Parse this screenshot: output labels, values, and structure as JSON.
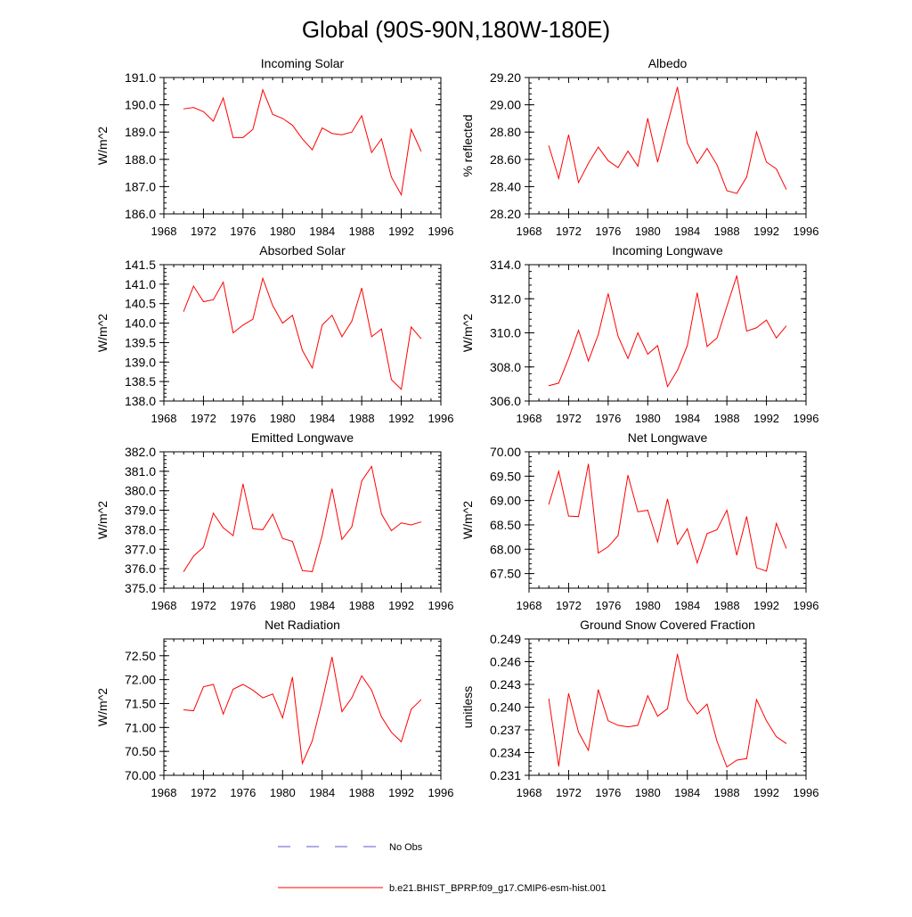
{
  "title": "Global (90S-90N,180W-180E)",
  "chart_data": [
    {
      "type": "line",
      "title": "Incoming Solar",
      "ylabel": "W/m^2",
      "xlim": [
        1968,
        1996
      ],
      "ylim": [
        186.0,
        191.0
      ],
      "xticks": [
        1968,
        1972,
        1976,
        1980,
        1984,
        1988,
        1992,
        1996
      ],
      "yticks": [
        "186.0",
        "187.0",
        "188.0",
        "189.0",
        "190.0",
        "191.0"
      ],
      "x": [
        1970,
        1971,
        1972,
        1973,
        1974,
        1975,
        1976,
        1977,
        1978,
        1979,
        1980,
        1981,
        1982,
        1983,
        1984,
        1985,
        1986,
        1987,
        1988,
        1989,
        1990,
        1991,
        1992,
        1993,
        1994
      ],
      "series": [
        {
          "name": "b.e21.BHIST_BPRP.f09_g17.CMIP6-esm-hist.001",
          "color": "#ff0000",
          "values": [
            189.85,
            189.9,
            189.75,
            189.4,
            190.25,
            188.8,
            188.8,
            189.1,
            190.55,
            189.65,
            189.5,
            189.25,
            188.75,
            188.35,
            189.15,
            188.95,
            188.9,
            189.0,
            189.6,
            188.25,
            188.75,
            187.35,
            186.7,
            189.1,
            188.3
          ]
        }
      ]
    },
    {
      "type": "line",
      "title": "Albedo",
      "ylabel": "% reflected",
      "xlim": [
        1968,
        1996
      ],
      "ylim": [
        28.2,
        29.2
      ],
      "xticks": [
        1968,
        1972,
        1976,
        1980,
        1984,
        1988,
        1992,
        1996
      ],
      "yticks": [
        "28.20",
        "28.40",
        "28.60",
        "28.80",
        "29.00",
        "29.20"
      ],
      "x": [
        1970,
        1971,
        1972,
        1973,
        1974,
        1975,
        1976,
        1977,
        1978,
        1979,
        1980,
        1981,
        1982,
        1983,
        1984,
        1985,
        1986,
        1987,
        1988,
        1989,
        1990,
        1991,
        1992,
        1993,
        1994
      ],
      "series": [
        {
          "name": "b.e21.BHIST_BPRP.f09_g17.CMIP6-esm-hist.001",
          "color": "#ff0000",
          "values": [
            28.7,
            28.46,
            28.78,
            28.43,
            28.57,
            28.69,
            28.59,
            28.54,
            28.66,
            28.55,
            28.9,
            28.58,
            28.86,
            29.13,
            28.72,
            28.57,
            28.68,
            28.56,
            28.37,
            28.35,
            28.47,
            28.8,
            28.58,
            28.53,
            28.38
          ]
        }
      ]
    },
    {
      "type": "line",
      "title": "Absorbed Solar",
      "ylabel": "W/m^2",
      "xlim": [
        1968,
        1996
      ],
      "ylim": [
        138.0,
        141.5
      ],
      "xticks": [
        1968,
        1972,
        1976,
        1980,
        1984,
        1988,
        1992,
        1996
      ],
      "yticks": [
        "138.0",
        "138.5",
        "139.0",
        "139.5",
        "140.0",
        "140.5",
        "141.0",
        "141.5"
      ],
      "x": [
        1970,
        1971,
        1972,
        1973,
        1974,
        1975,
        1976,
        1977,
        1978,
        1979,
        1980,
        1981,
        1982,
        1983,
        1984,
        1985,
        1986,
        1987,
        1988,
        1989,
        1990,
        1991,
        1992,
        1993,
        1994
      ],
      "series": [
        {
          "name": "b.e21.BHIST_BPRP.f09_g17.CMIP6-esm-hist.001",
          "color": "#ff0000",
          "values": [
            140.3,
            140.95,
            140.55,
            140.6,
            141.05,
            139.75,
            139.95,
            140.1,
            141.15,
            140.45,
            140.0,
            140.2,
            139.3,
            138.85,
            139.95,
            140.2,
            139.65,
            140.05,
            140.9,
            139.65,
            139.85,
            138.55,
            138.3,
            139.9,
            139.6
          ]
        }
      ]
    },
    {
      "type": "line",
      "title": "Incoming Longwave",
      "ylabel": "W/m^2",
      "xlim": [
        1968,
        1996
      ],
      "ylim": [
        306.0,
        314.0
      ],
      "xticks": [
        1968,
        1972,
        1976,
        1980,
        1984,
        1988,
        1992,
        1996
      ],
      "yticks": [
        "306.0",
        "308.0",
        "310.0",
        "312.0",
        "314.0"
      ],
      "x": [
        1970,
        1971,
        1972,
        1973,
        1974,
        1975,
        1976,
        1977,
        1978,
        1979,
        1980,
        1981,
        1982,
        1983,
        1984,
        1985,
        1986,
        1987,
        1988,
        1989,
        1990,
        1991,
        1992,
        1993,
        1994
      ],
      "series": [
        {
          "name": "b.e21.BHIST_BPRP.f09_g17.CMIP6-esm-hist.001",
          "color": "#ff0000",
          "values": [
            306.9,
            307.05,
            308.5,
            310.15,
            308.35,
            309.9,
            312.3,
            309.8,
            308.5,
            310.0,
            308.75,
            309.25,
            306.85,
            307.8,
            309.25,
            312.35,
            309.2,
            309.7,
            311.55,
            313.35,
            310.1,
            310.3,
            310.75,
            309.7,
            310.4
          ]
        }
      ]
    },
    {
      "type": "line",
      "title": "Emitted Longwave",
      "ylabel": "W/m^2",
      "xlim": [
        1968,
        1996
      ],
      "ylim": [
        375.0,
        382.0
      ],
      "xticks": [
        1968,
        1972,
        1976,
        1980,
        1984,
        1988,
        1992,
        1996
      ],
      "yticks": [
        "375.0",
        "376.0",
        "377.0",
        "378.0",
        "379.0",
        "380.0",
        "381.0",
        "382.0"
      ],
      "x": [
        1970,
        1971,
        1972,
        1973,
        1974,
        1975,
        1976,
        1977,
        1978,
        1979,
        1980,
        1981,
        1982,
        1983,
        1984,
        1985,
        1986,
        1987,
        1988,
        1989,
        1990,
        1991,
        1992,
        1993,
        1994
      ],
      "series": [
        {
          "name": "b.e21.BHIST_BPRP.f09_g17.CMIP6-esm-hist.001",
          "color": "#ff0000",
          "values": [
            375.85,
            376.65,
            377.1,
            378.85,
            378.1,
            377.7,
            380.35,
            378.05,
            378.0,
            378.8,
            377.55,
            377.4,
            375.9,
            375.85,
            377.7,
            380.1,
            377.5,
            378.15,
            380.5,
            381.25,
            378.8,
            377.95,
            378.35,
            378.25,
            378.4
          ]
        }
      ]
    },
    {
      "type": "line",
      "title": "Net Longwave",
      "ylabel": "W/m^2",
      "xlim": [
        1968,
        1996
      ],
      "ylim": [
        67.2,
        70.0
      ],
      "xticks": [
        1968,
        1972,
        1976,
        1980,
        1984,
        1988,
        1992,
        1996
      ],
      "yticks": [
        "67.50",
        "68.00",
        "68.50",
        "69.00",
        "69.50",
        "70.00"
      ],
      "x": [
        1970,
        1971,
        1972,
        1973,
        1974,
        1975,
        1976,
        1977,
        1978,
        1979,
        1980,
        1981,
        1982,
        1983,
        1984,
        1985,
        1986,
        1987,
        1988,
        1989,
        1990,
        1991,
        1992,
        1993,
        1994
      ],
      "series": [
        {
          "name": "b.e21.BHIST_BPRP.f09_g17.CMIP6-esm-hist.001",
          "color": "#ff0000",
          "values": [
            68.92,
            69.6,
            68.68,
            68.67,
            69.75,
            67.92,
            68.05,
            68.28,
            69.52,
            68.77,
            68.8,
            68.15,
            69.03,
            68.1,
            68.42,
            67.72,
            68.32,
            68.4,
            68.8,
            67.88,
            68.67,
            67.62,
            67.55,
            68.53,
            68.02
          ]
        }
      ]
    },
    {
      "type": "line",
      "title": "Net Radiation",
      "ylabel": "W/m^2",
      "xlim": [
        1968,
        1996
      ],
      "ylim": [
        70.0,
        72.85
      ],
      "xticks": [
        1968,
        1972,
        1976,
        1980,
        1984,
        1988,
        1992,
        1996
      ],
      "yticks": [
        "70.00",
        "70.50",
        "71.00",
        "71.50",
        "72.00",
        "72.50"
      ],
      "x": [
        1970,
        1971,
        1972,
        1973,
        1974,
        1975,
        1976,
        1977,
        1978,
        1979,
        1980,
        1981,
        1982,
        1983,
        1984,
        1985,
        1986,
        1987,
        1988,
        1989,
        1990,
        1991,
        1992,
        1993,
        1994
      ],
      "series": [
        {
          "name": "b.e21.BHIST_BPRP.f09_g17.CMIP6-esm-hist.001",
          "color": "#ff0000",
          "values": [
            71.37,
            71.35,
            71.85,
            71.9,
            71.28,
            71.8,
            71.9,
            71.78,
            71.62,
            71.7,
            71.2,
            72.05,
            70.25,
            70.72,
            71.55,
            72.47,
            71.33,
            71.62,
            72.08,
            71.78,
            71.22,
            70.9,
            70.7,
            71.38,
            71.58
          ]
        }
      ]
    },
    {
      "type": "line",
      "title": "Ground Snow Covered Fraction",
      "ylabel": "unitless",
      "xlim": [
        1968,
        1996
      ],
      "ylim": [
        0.231,
        0.249
      ],
      "xticks": [
        1968,
        1972,
        1976,
        1980,
        1984,
        1988,
        1992,
        1996
      ],
      "yticks": [
        "0.231",
        "0.234",
        "0.237",
        "0.240",
        "0.243",
        "0.246",
        "0.249"
      ],
      "x": [
        1970,
        1971,
        1972,
        1973,
        1974,
        1975,
        1976,
        1977,
        1978,
        1979,
        1980,
        1981,
        1982,
        1983,
        1984,
        1985,
        1986,
        1987,
        1988,
        1989,
        1990,
        1991,
        1992,
        1993,
        1994
      ],
      "series": [
        {
          "name": "b.e21.BHIST_BPRP.f09_g17.CMIP6-esm-hist.001",
          "color": "#ff0000",
          "values": [
            0.2411,
            0.2322,
            0.2418,
            0.2367,
            0.2343,
            0.2423,
            0.2382,
            0.2376,
            0.2374,
            0.2376,
            0.2415,
            0.2388,
            0.2398,
            0.247,
            0.241,
            0.2391,
            0.2404,
            0.2355,
            0.2321,
            0.233,
            0.2332,
            0.241,
            0.2382,
            0.2361,
            0.2352
          ]
        }
      ]
    }
  ],
  "legend": {
    "items": [
      {
        "label": "No Obs",
        "color": "#5a5ad0",
        "style": "dashed"
      },
      {
        "label": "b.e21.BHIST_BPRP.f09_g17.CMIP6-esm-hist.001",
        "color": "#ff0000",
        "style": "solid"
      }
    ]
  }
}
